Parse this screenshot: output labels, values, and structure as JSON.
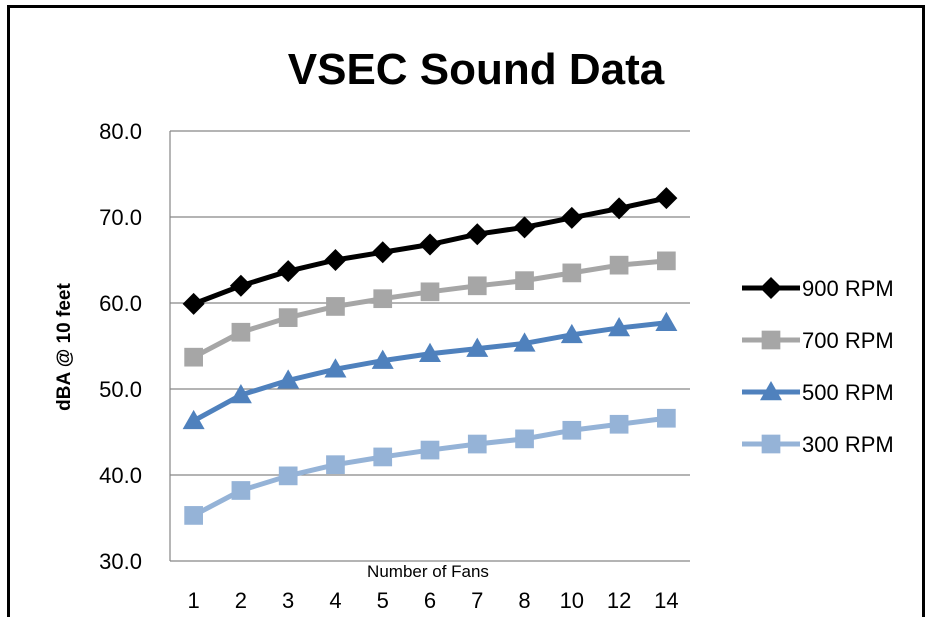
{
  "chart_data": {
    "type": "line",
    "title": "VSEC Sound Data",
    "xlabel": "Number of Fans",
    "ylabel": "dBA @ 10 feet",
    "categories": [
      "1",
      "2",
      "3",
      "4",
      "5",
      "6",
      "7",
      "8",
      "10",
      "12",
      "14"
    ],
    "yticks": [
      "30.0",
      "40.0",
      "50.0",
      "60.0",
      "70.0",
      "80.0"
    ],
    "ylim": [
      30,
      80
    ],
    "grid": true,
    "legend_position": "right",
    "series": [
      {
        "name": "900 RPM",
        "color": "#000000",
        "marker": "diamond",
        "values": [
          59.9,
          62.0,
          63.7,
          65.0,
          65.9,
          66.8,
          68.0,
          68.8,
          69.9,
          71.0,
          72.2
        ]
      },
      {
        "name": "700 RPM",
        "color": "#a6a6a6",
        "marker": "square",
        "values": [
          53.7,
          56.6,
          58.3,
          59.6,
          60.5,
          61.3,
          62.0,
          62.6,
          63.5,
          64.4,
          64.9
        ]
      },
      {
        "name": "500 RPM",
        "color": "#4f81bd",
        "marker": "triangle",
        "values": [
          46.3,
          49.3,
          51.0,
          52.3,
          53.3,
          54.1,
          54.7,
          55.3,
          56.3,
          57.1,
          57.7
        ]
      },
      {
        "name": "300 RPM",
        "color": "#95b3d7",
        "marker": "square",
        "values": [
          35.3,
          38.2,
          39.9,
          41.2,
          42.1,
          42.9,
          43.6,
          44.2,
          45.2,
          45.9,
          46.6
        ]
      }
    ]
  }
}
